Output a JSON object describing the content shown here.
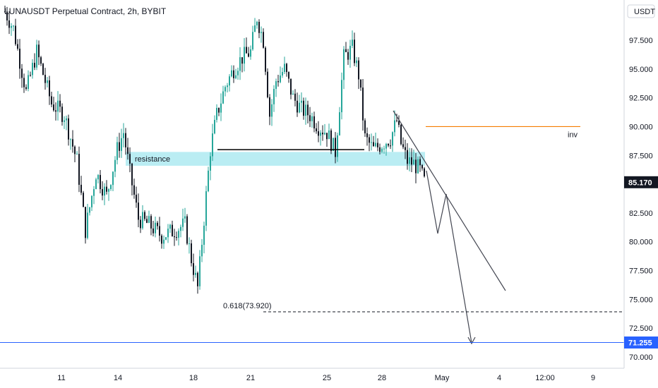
{
  "chart_data": {
    "type": "candlestick",
    "title": "LUNAUSDT Perpetual Contract, 2h, BYBIT",
    "currency_label": "USDT",
    "y_axis": {
      "ticks": [
        "97.500",
        "95.000",
        "92.500",
        "90.000",
        "87.500",
        "82.500",
        "80.000",
        "77.500",
        "75.000",
        "72.500",
        "70.000"
      ],
      "tick_values": [
        97.5,
        95.0,
        92.5,
        90.0,
        87.5,
        82.5,
        80.0,
        77.5,
        75.0,
        72.5,
        70.0
      ],
      "range": [
        69.0,
        100.5
      ]
    },
    "x_axis": {
      "ticks": [
        "11",
        "14",
        "18",
        "21",
        "25",
        "28",
        "May",
        "4",
        "12:00",
        "9"
      ]
    },
    "current_price": {
      "value": 85.17,
      "label": "85.170",
      "color": "#131722"
    },
    "level_line": {
      "value": 71.255,
      "label": "71.255",
      "color": "#2962ff"
    },
    "resistance_zone": {
      "label": "resistance",
      "low": 86.6,
      "high": 87.8,
      "color": "#b2ebf2"
    },
    "horizontal_support": {
      "value": 88.0
    },
    "inv_line": {
      "label": "inv",
      "value": 90.0,
      "color": "#f57c00"
    },
    "fib_level": {
      "label": "0.618(73.920)",
      "value": 73.92
    },
    "colors": {
      "up": "#26a69a",
      "down": "#131722",
      "trend": "#434651"
    },
    "path_keypoints": [
      [
        0,
        100.0
      ],
      [
        4,
        98.5
      ],
      [
        10,
        93.0
      ],
      [
        15,
        96.5
      ],
      [
        22,
        92.0
      ],
      [
        28,
        91.0
      ],
      [
        34,
        87.0
      ],
      [
        38,
        81.0
      ],
      [
        43,
        86.0
      ],
      [
        48,
        84.0
      ],
      [
        53,
        88.0
      ],
      [
        56,
        89.5
      ],
      [
        59,
        86.0
      ],
      [
        63,
        82.0
      ],
      [
        68,
        81.5
      ],
      [
        74,
        80.5
      ],
      [
        80,
        81.0
      ],
      [
        85,
        81.5
      ],
      [
        88,
        78.5
      ],
      [
        91,
        76.0
      ],
      [
        94,
        82.0
      ],
      [
        97,
        88.0
      ],
      [
        100,
        91.0
      ],
      [
        104,
        93.5
      ],
      [
        108,
        95.0
      ],
      [
        112,
        96.0
      ],
      [
        116,
        96.5
      ],
      [
        119,
        99.5
      ],
      [
        122,
        97.5
      ],
      [
        125,
        91.0
      ],
      [
        128,
        94.0
      ],
      [
        132,
        95.0
      ],
      [
        136,
        92.5
      ],
      [
        140,
        91.5
      ],
      [
        144,
        91.0
      ],
      [
        148,
        90.0
      ],
      [
        152,
        89.5
      ],
      [
        156,
        87.8
      ],
      [
        160,
        96.0
      ],
      [
        164,
        96.8
      ],
      [
        167,
        94.5
      ],
      [
        170,
        89.0
      ],
      [
        174,
        88.0
      ],
      [
        178,
        88.5
      ],
      [
        182,
        89.0
      ],
      [
        185,
        90.5
      ],
      [
        187,
        88.5
      ],
      [
        190,
        87.0
      ],
      [
        193,
        86.8
      ],
      [
        196,
        86.2
      ],
      [
        198,
        85.2
      ]
    ]
  }
}
